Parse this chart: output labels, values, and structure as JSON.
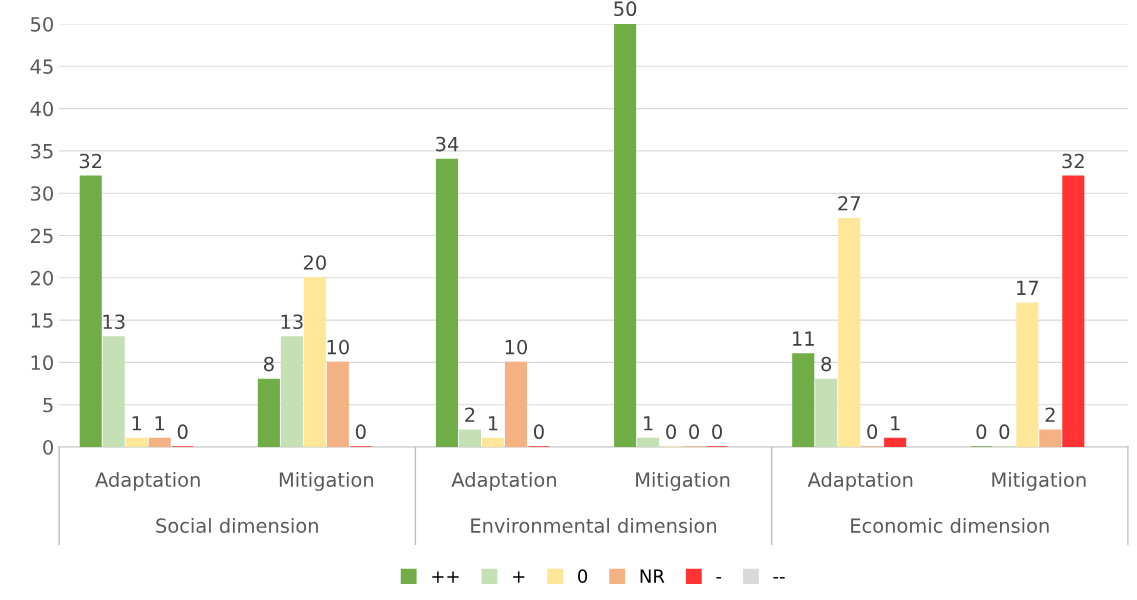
{
  "chart_data": {
    "type": "bar",
    "categories": [
      "Adaptation",
      "Mitigation",
      "Adaptation",
      "Mitigation",
      "Adaptation",
      "Mitigation"
    ],
    "annotations": [
      "Social dimension",
      "Environmental dimension",
      "Economic dimension"
    ],
    "series": [
      {
        "name": "++",
        "color": "#70ad47",
        "values": [
          32,
          8,
          34,
          50,
          11,
          0
        ]
      },
      {
        "name": "+",
        "color": "#c5e0b4",
        "values": [
          13,
          13,
          2,
          1,
          8,
          0
        ]
      },
      {
        "name": "0",
        "color": "#ffe699",
        "values": [
          1,
          20,
          1,
          0,
          27,
          17
        ]
      },
      {
        "name": "NR",
        "color": "#f4b183",
        "values": [
          1,
          10,
          10,
          0,
          0,
          2
        ]
      },
      {
        "name": "-",
        "color": "#ff3333",
        "values": [
          0,
          0,
          0,
          0,
          1,
          32
        ]
      },
      {
        "name": "--",
        "color": "#d9d9d9",
        "values": [
          null,
          null,
          null,
          null,
          null,
          null
        ]
      }
    ],
    "ylim": [
      0,
      50
    ],
    "yticks": [
      0,
      5,
      10,
      15,
      20,
      25,
      30,
      35,
      40,
      45,
      50
    ],
    "grid": "y",
    "legend": "bottom",
    "data_labels": true
  }
}
